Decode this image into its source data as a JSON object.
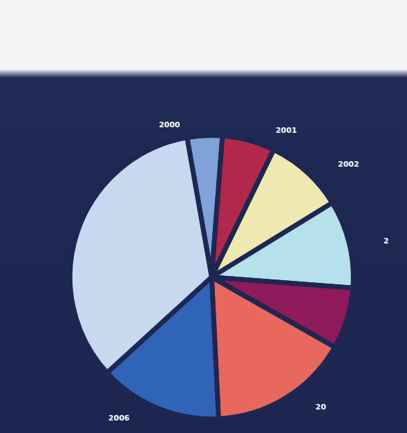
{
  "chart_data": {
    "type": "pie",
    "categories": [
      "2000",
      "2001",
      "2002",
      "2",
      null,
      "20",
      "2006",
      null
    ],
    "values": [
      4,
      6,
      9,
      10,
      7,
      16,
      14,
      34
    ],
    "colors": [
      "#7fa3d8",
      "#b2284a",
      "#efe8b0",
      "#b6e0ea",
      "#8e1a5a",
      "#e8685e",
      "#2f64b8",
      "#c8d8ee"
    ]
  }
}
